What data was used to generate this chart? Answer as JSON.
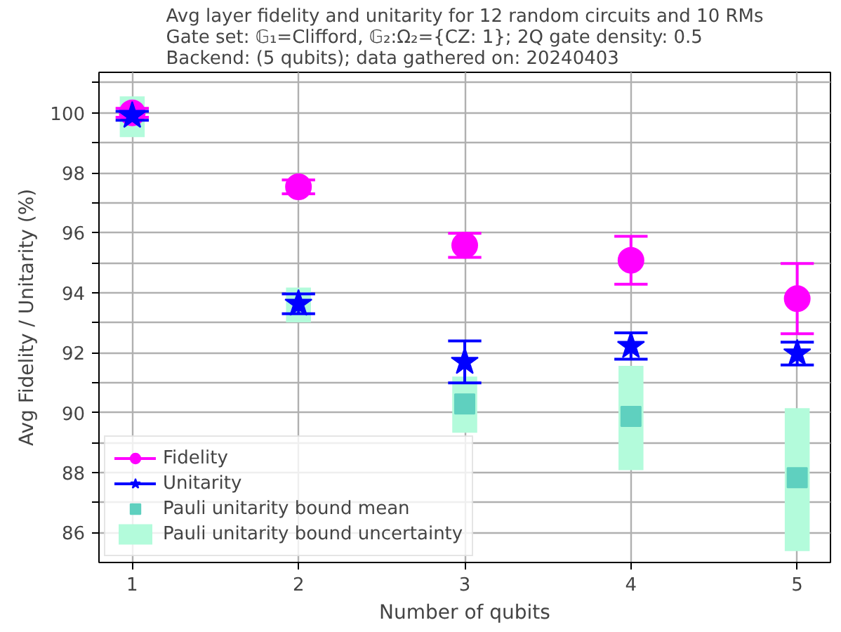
{
  "chart_data": {
    "type": "scatter",
    "title": "Avg layer fidelity and unitarity for 12 random circuits and 10 RMs\nGate set: 𝔾₁=Clifford, 𝔾₂:Ω₂={CZ: 1}; 2Q gate density: 0.5\nBackend: (5 qubits); data gathered on: 20240403",
    "xlabel": "Number of qubits",
    "ylabel": "Avg Fidelity / Unitarity (%)",
    "x": [
      1,
      2,
      3,
      4,
      5
    ],
    "xlim": [
      0.8,
      5.2
    ],
    "xticks": [
      1,
      2,
      3,
      4,
      5
    ],
    "ylim": [
      85.0,
      101.35
    ],
    "yticks": [
      86,
      {
        "value": 87,
        "label": null
      },
      88,
      {
        "value": 89,
        "label": null
      },
      90,
      {
        "value": 91,
        "label": null
      },
      92,
      {
        "value": 93,
        "label": null
      },
      94,
      {
        "value": 95,
        "label": null
      },
      96,
      {
        "value": 97,
        "label": null
      },
      98,
      {
        "value": 99,
        "label": null
      },
      100,
      {
        "value": 101,
        "label": null
      }
    ],
    "grid": true,
    "legend": "bottom left",
    "series": [
      {
        "name": "Pauli unitarity bound uncertainty",
        "type": "bar",
        "color": "#b3fbdb",
        "base": [
          99.19,
          93.01,
          89.33,
          88.08,
          85.38
        ],
        "values": [
          1.36,
          1.16,
          1.87,
          3.48,
          4.77
        ]
      },
      {
        "name": "Pauli unitarity bound mean",
        "marker": "square",
        "color": "#5fd0bf",
        "values": [
          null,
          null,
          90.29,
          89.87,
          87.83
        ]
      },
      {
        "name": "Fidelity",
        "marker": "circle",
        "color": "#ff00ff",
        "values": [
          100.0,
          97.53,
          95.58,
          95.08,
          93.8
        ],
        "errors": [
          0.15,
          0.23,
          0.4,
          0.8,
          1.17
        ]
      },
      {
        "name": "Unitarity",
        "marker": "star",
        "color": "#0000ff",
        "values": [
          99.9,
          93.63,
          91.69,
          92.22,
          91.97
        ],
        "errors": [
          0.15,
          0.33,
          0.7,
          0.44,
          0.38
        ]
      }
    ]
  }
}
